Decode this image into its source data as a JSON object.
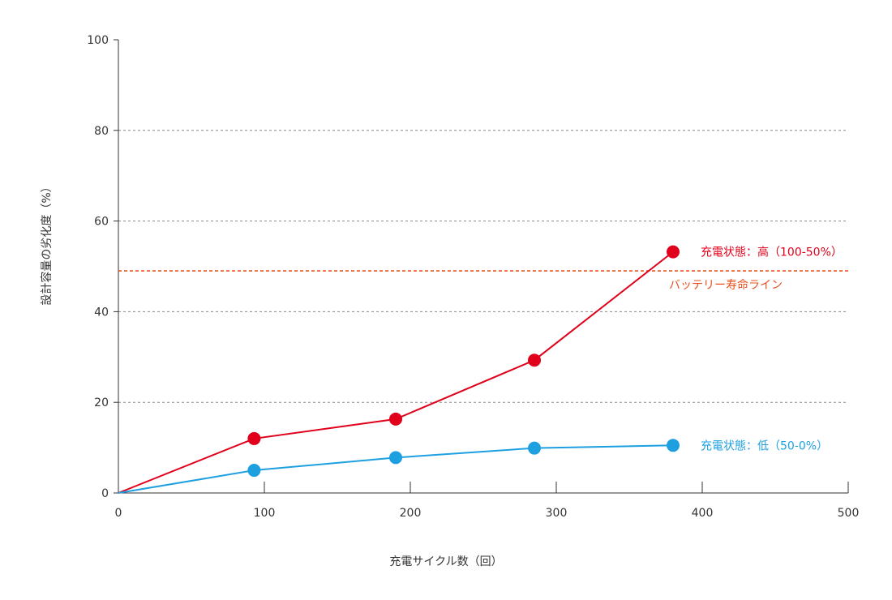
{
  "chart_data": {
    "type": "line",
    "xlabel": "充電サイクル数（回）",
    "ylabel": "設計容量の劣化度（%）",
    "xlim": [
      0,
      500
    ],
    "ylim": [
      0,
      100
    ],
    "xticks": [
      0,
      100,
      200,
      300,
      400,
      500
    ],
    "yticks": [
      0,
      20,
      40,
      60,
      80,
      100
    ],
    "grid": "horizontal dashed at 20, 40, 60, 80",
    "legend": "inline labels at right end of each series",
    "series": [
      {
        "name": "充電状態：高（100-50%）",
        "color": "#e0001b",
        "x": [
          0,
          93,
          190,
          285,
          380
        ],
        "y": [
          0,
          12,
          16.3,
          29.3,
          53.2
        ]
      },
      {
        "name": "充電状態：低（50-0%）",
        "color": "#1ea0e0",
        "x": [
          0,
          93,
          190,
          285,
          380
        ],
        "y": [
          0,
          5,
          7.8,
          9.9,
          10.5
        ]
      }
    ],
    "reference_line": {
      "label": "バッテリー寿命ライン",
      "y": 49,
      "color": "#e8501e"
    }
  }
}
